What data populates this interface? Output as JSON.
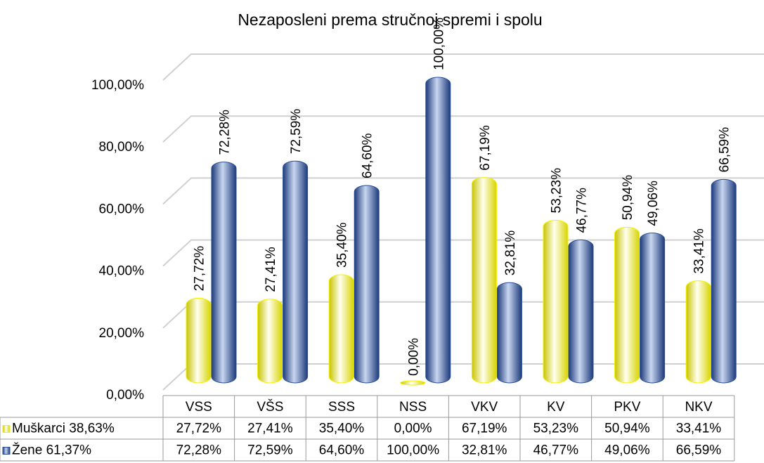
{
  "chart_data": {
    "type": "bar",
    "title": "Nezaposleni prema stručnoj spremi i spolu",
    "categories": [
      "VSS",
      "VŠS",
      "SSS",
      "NSS",
      "VKV",
      "KV",
      "PKV",
      "NKV"
    ],
    "series": [
      {
        "name": "Muškarci 38,63%",
        "color": "#f5f000",
        "values": [
          27.72,
          27.41,
          35.4,
          0,
          67.19,
          53.23,
          50.94,
          33.41
        ],
        "value_labels": [
          "27,72%",
          "27,41%",
          "35,40%",
          "0,00%",
          "67,19%",
          "53,23%",
          "50,94%",
          "33,41%"
        ]
      },
      {
        "name": "Žene 61,37%",
        "color": "#2a4d96",
        "values": [
          72.28,
          72.59,
          64.6,
          100,
          32.81,
          46.77,
          49.06,
          66.59
        ],
        "value_labels": [
          "72,28%",
          "72,59%",
          "64,60%",
          "100,00%",
          "32,81%",
          "46,77%",
          "49,06%",
          "66,59%"
        ]
      }
    ],
    "ylim": [
      0,
      100
    ],
    "yticks": [
      {
        "value": 0,
        "label": "0,00%"
      },
      {
        "value": 20,
        "label": "20,00%"
      },
      {
        "value": 40,
        "label": "40,00%"
      },
      {
        "value": 60,
        "label": "60,00%"
      },
      {
        "value": 80,
        "label": "80,00%"
      },
      {
        "value": 100,
        "label": "100,00%"
      }
    ],
    "grid": true
  }
}
